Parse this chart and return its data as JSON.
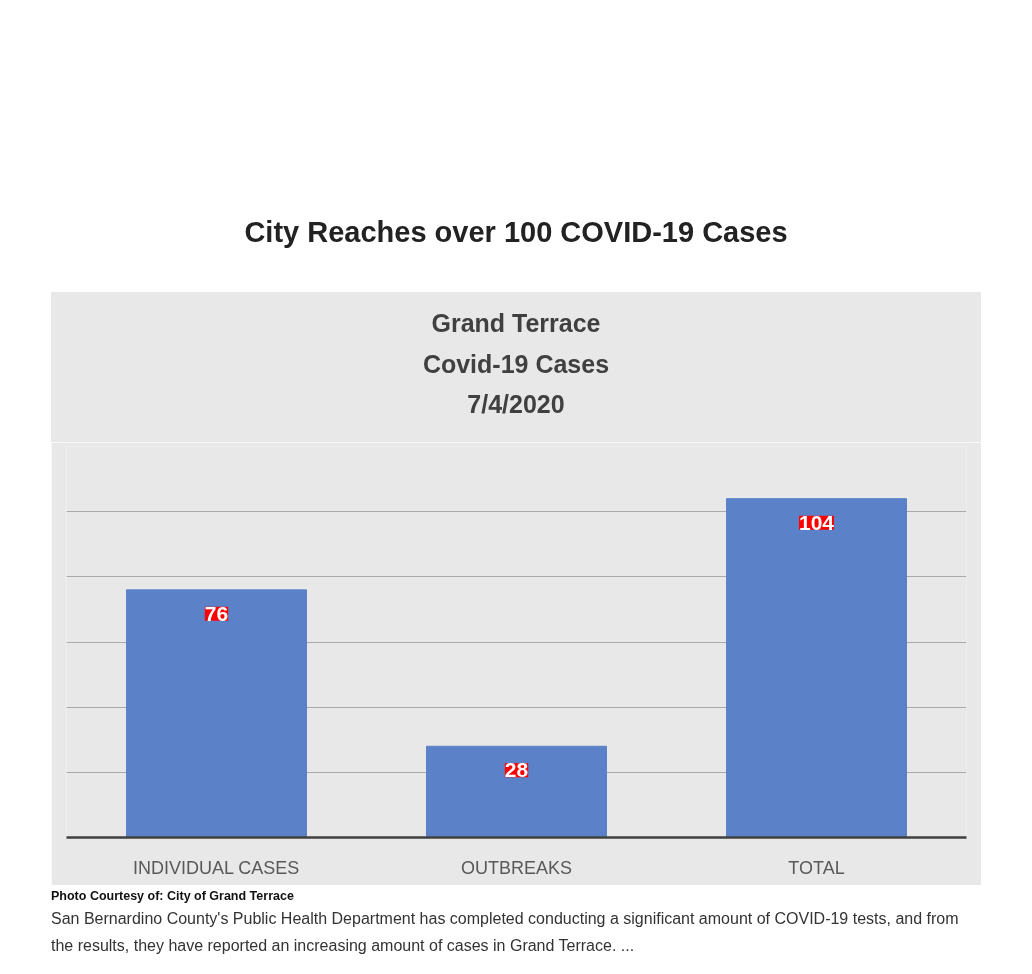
{
  "chart_data": {
    "type": "bar",
    "title": "City Reaches over 100 COVID-19 Cases",
    "subtitle": "Grand Terrace\nCovid-19 Cases\n7/4/2020",
    "categories": [
      "INDIVIDUAL CASES",
      "OUTBREAKS",
      "TOTAL"
    ],
    "values": [
      76,
      28,
      104
    ],
    "color": "#5b82c8",
    "data_labels": true,
    "ylim": [
      0,
      120
    ],
    "yticks": [
      {
        "value": 0,
        "label": null
      },
      {
        "value": 20,
        "label": null
      },
      {
        "value": 40,
        "label": null
      },
      {
        "value": 60,
        "label": null
      },
      {
        "value": 80,
        "label": null
      },
      {
        "value": 100,
        "label": null
      },
      {
        "value": 120,
        "label": null
      }
    ],
    "tick_labels": "x",
    "grid": "y",
    "annotations": [
      "Photo Courtesy of: City of Grand Terrace",
      "San Bernardino County's Public Health Department has completed conducting a significant amount of COVID-19 tests, and from the results, they have reported an increasing amount of cases in Grand Terrace. ..."
    ]
  }
}
